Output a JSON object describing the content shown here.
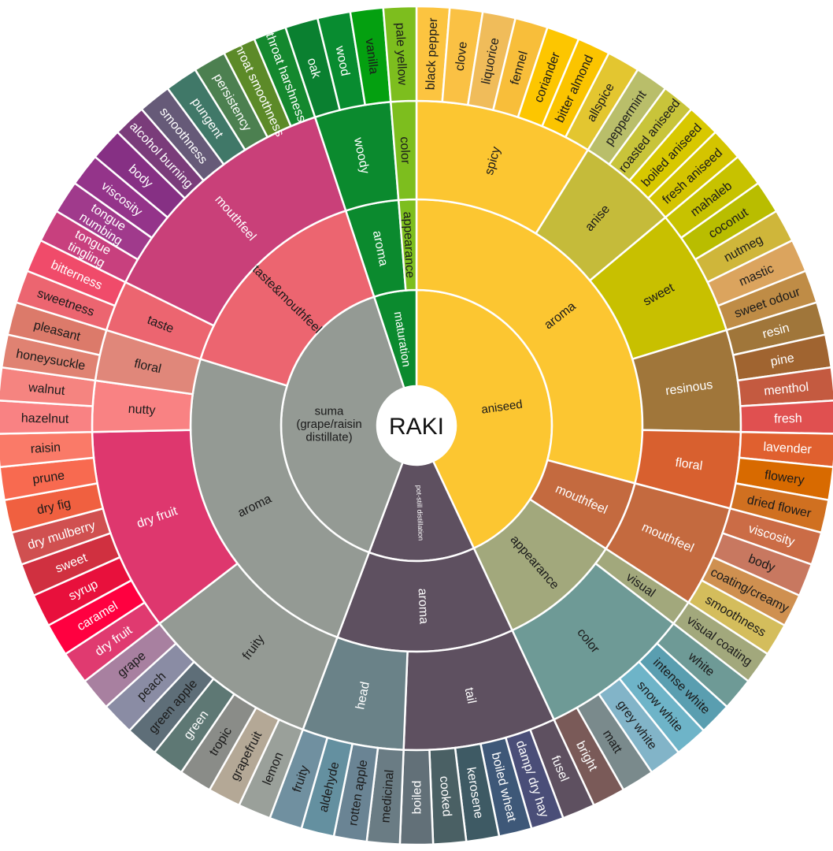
{
  "wheel": {
    "center_label": "RAKI",
    "text_colors": {
      "dark": "#1a1a1a",
      "light": "#ffffff"
    },
    "children": [
      {
        "label": "aniseed",
        "color": "#FCC631",
        "text": "dark",
        "children": [
          {
            "label": "aroma",
            "color": "#FCC631",
            "text": "dark",
            "children": [
              {
                "label": "spicy",
                "color": "#FCC631",
                "text": "dark",
                "children": [
                  {
                    "label": "black pepper",
                    "color": "#FCC440",
                    "text": "dark"
                  },
                  {
                    "label": "clove",
                    "color": "#FAC144",
                    "text": "dark"
                  },
                  {
                    "label": "liquorice",
                    "color": "#F0BC5A",
                    "text": "dark"
                  },
                  {
                    "label": "fennel",
                    "color": "#F8BE3A",
                    "text": "dark"
                  },
                  {
                    "label": "coriander",
                    "color": "#FDC600",
                    "text": "dark"
                  },
                  {
                    "label": "bitter almond",
                    "color": "#FBC400",
                    "text": "dark"
                  },
                  {
                    "label": "allspice",
                    "color": "#E3C630",
                    "text": "dark"
                  }
                ]
              },
              {
                "label": "anise",
                "color": "#C5BB3A",
                "text": "dark",
                "children": [
                  {
                    "label": "peppermint",
                    "color": "#B9BE6A",
                    "text": "dark"
                  },
                  {
                    "label": "roasted aniseed",
                    "color": "#C8C43A",
                    "text": "dark"
                  },
                  {
                    "label": "boiled aniseed",
                    "color": "#D8C800",
                    "text": "dark"
                  },
                  {
                    "label": "fresh aniseed",
                    "color": "#D4C400",
                    "text": "dark"
                  }
                ]
              },
              {
                "label": "sweet",
                "color": "#C8C000",
                "text": "dark",
                "children": [
                  {
                    "label": "mahaleb",
                    "color": "#C7C200",
                    "text": "dark"
                  },
                  {
                    "label": "coconut",
                    "color": "#B9BD00",
                    "text": "dark"
                  },
                  {
                    "label": "nutmeg",
                    "color": "#CFB63A",
                    "text": "dark"
                  },
                  {
                    "label": "mastic",
                    "color": "#DBA45E",
                    "text": "dark"
                  },
                  {
                    "label": "sweet odour",
                    "color": "#BF8C46",
                    "text": "dark"
                  }
                ]
              },
              {
                "label": "resinous",
                "color": "#A0763A",
                "text": "light",
                "children": [
                  {
                    "label": "resin",
                    "color": "#A0763A",
                    "text": "light"
                  },
                  {
                    "label": "pine",
                    "color": "#A06430",
                    "text": "light"
                  },
                  {
                    "label": "menthol",
                    "color": "#C45A40",
                    "text": "light"
                  },
                  {
                    "label": "fresh",
                    "color": "#E05050",
                    "text": "light"
                  }
                ]
              },
              {
                "label": "floral",
                "color": "#D8602F",
                "text": "light",
                "children": [
                  {
                    "label": "lavender",
                    "color": "#E0602F",
                    "text": "light"
                  },
                  {
                    "label": "flowery",
                    "color": "#D86A00",
                    "text": "dark"
                  },
                  {
                    "label": "dried flower",
                    "color": "#D07020",
                    "text": "dark"
                  }
                ]
              }
            ]
          },
          {
            "label": "mouthfeel",
            "color": "#C46A3F",
            "text": "light",
            "children": [
              {
                "label": "mouthfeel",
                "color": "#C46A3F",
                "text": "light",
                "children": [
                  {
                    "label": "viscosity",
                    "color": "#CB6C46",
                    "text": "light"
                  },
                  {
                    "label": "body",
                    "color": "#C87860",
                    "text": "dark"
                  },
                  {
                    "label": "coating/creamy",
                    "color": "#CF9050",
                    "text": "dark"
                  },
                  {
                    "label": "smoothness",
                    "color": "#D4BD5C",
                    "text": "dark"
                  }
                ]
              }
            ]
          },
          {
            "label": "appearance",
            "color": "#A2A87C",
            "text": "dark",
            "children": [
              {
                "label": "visual",
                "color": "#A2A87C",
                "text": "dark",
                "children": [
                  {
                    "label": "visual coating",
                    "color": "#A2A87C",
                    "text": "dark"
                  }
                ]
              },
              {
                "label": "color",
                "color": "#6E9A96",
                "text": "dark",
                "children": [
                  {
                    "label": "white",
                    "color": "#6E9A96",
                    "text": "dark"
                  },
                  {
                    "label": "intense white",
                    "color": "#5A9EB0",
                    "text": "dark"
                  },
                  {
                    "label": "snow white",
                    "color": "#6EB4C8",
                    "text": "dark"
                  },
                  {
                    "label": "grey white",
                    "color": "#82B4C8",
                    "text": "dark"
                  },
                  {
                    "label": "matt",
                    "color": "#7A8A8C",
                    "text": "dark"
                  },
                  {
                    "label": "bright",
                    "color": "#7A5A58",
                    "text": "light"
                  }
                ]
              }
            ]
          }
        ]
      },
      {
        "label": "pot-still distillation",
        "color": "#5E5060",
        "text": "light",
        "small": true,
        "children": [
          {
            "label": "aroma",
            "color": "#5E5060",
            "text": "light",
            "children": [
              {
                "label": "tail",
                "color": "#5E5060",
                "text": "light",
                "children": [
                  {
                    "label": "fusel",
                    "color": "#5E5060",
                    "text": "light"
                  },
                  {
                    "label": "damp/ dry hay",
                    "color": "#4A4E78",
                    "text": "light"
                  },
                  {
                    "label": "boiled wheat",
                    "color": "#3E5878",
                    "text": "light"
                  },
                  {
                    "label": "kerosene",
                    "color": "#3E5A64",
                    "text": "light"
                  },
                  {
                    "label": "cooked",
                    "color": "#4A6064",
                    "text": "light"
                  },
                  {
                    "label": "boiled",
                    "color": "#627078",
                    "text": "light"
                  }
                ]
              },
              {
                "label": "head",
                "color": "#6A8288",
                "text": "light",
                "children": [
                  {
                    "label": "medicinal",
                    "color": "#6A7C84",
                    "text": "dark"
                  },
                  {
                    "label": "rotten apple",
                    "color": "#6A8494",
                    "text": "dark"
                  },
                  {
                    "label": "aldehyde",
                    "color": "#6490A0",
                    "text": "dark"
                  },
                  {
                    "label": "fruity",
                    "color": "#7090A0",
                    "text": "dark"
                  }
                ]
              }
            ]
          }
        ]
      },
      {
        "label": "suma (grape/raisin distillate)",
        "lines": [
          "suma",
          "(grape/raisin",
          "distillate)"
        ],
        "horizontal": true,
        "color": "#949A94",
        "text": "dark",
        "children": [
          {
            "label": "aroma",
            "color": "#949A94",
            "text": "dark",
            "children": [
              {
                "label": "fruity",
                "color": "#949A94",
                "text": "dark",
                "children": [
                  {
                    "label": "lemon",
                    "color": "#9AA09A",
                    "text": "dark"
                  },
                  {
                    "label": "grapefruit",
                    "color": "#B4A896",
                    "text": "dark"
                  },
                  {
                    "label": "tropic",
                    "color": "#8A8C88",
                    "text": "dark"
                  },
                  {
                    "label": "green",
                    "color": "#5E7874",
                    "text": "light"
                  },
                  {
                    "label": "green apple",
                    "color": "#5E6E78",
                    "text": "dark"
                  },
                  {
                    "label": "peach",
                    "color": "#8A8CA4",
                    "text": "dark"
                  },
                  {
                    "label": "grape",
                    "color": "#A880A0",
                    "text": "dark"
                  }
                ]
              },
              {
                "label": "dry fruit",
                "color": "#DE376E",
                "text": "light",
                "children": [
                  {
                    "label": "dry fruit",
                    "color": "#E03A70",
                    "text": "light"
                  },
                  {
                    "label": "caramel",
                    "color": "#FF0040",
                    "text": "light"
                  },
                  {
                    "label": "syrup",
                    "color": "#E8103C",
                    "text": "light"
                  },
                  {
                    "label": "sweet",
                    "color": "#D03040",
                    "text": "light"
                  },
                  {
                    "label": "dry mulberry",
                    "color": "#D05050",
                    "text": "light"
                  },
                  {
                    "label": "dry fig",
                    "color": "#F06040",
                    "text": "dark"
                  },
                  {
                    "label": "prune",
                    "color": "#F86A50",
                    "text": "dark"
                  },
                  {
                    "label": "raisin",
                    "color": "#FA7A68",
                    "text": "dark"
                  }
                ]
              },
              {
                "label": "nutty",
                "color": "#F98283",
                "text": "dark",
                "children": [
                  {
                    "label": "hazelnut",
                    "color": "#F98283",
                    "text": "dark"
                  },
                  {
                    "label": "walnut",
                    "color": "#F58480",
                    "text": "dark"
                  }
                ]
              },
              {
                "label": "floral",
                "color": "#E0877A",
                "text": "dark",
                "children": [
                  {
                    "label": "honeysuckle",
                    "color": "#E08272",
                    "text": "dark"
                  },
                  {
                    "label": "pleasant",
                    "color": "#DC7A6A",
                    "text": "dark"
                  }
                ]
              }
            ]
          },
          {
            "label": "taste&mouthfeel",
            "color": "#EC6570",
            "text": "dark",
            "children": [
              {
                "label": "taste",
                "color": "#EC6570",
                "text": "dark",
                "children": [
                  {
                    "label": "sweetness",
                    "color": "#EC6570",
                    "text": "dark"
                  },
                  {
                    "label": "bitterness",
                    "color": "#F04B6A",
                    "text": "light"
                  }
                ]
              },
              {
                "label": "mouthfeel",
                "color": "#C94079",
                "text": "light",
                "children": [
                  {
                    "label": "tongue tingling",
                    "lines": [
                      "tongue",
                      "tingling"
                    ],
                    "color": "#C8407E",
                    "text": "light"
                  },
                  {
                    "label": "tongue numbing",
                    "lines": [
                      "tongue",
                      "numbing"
                    ],
                    "color": "#A03A8C",
                    "text": "light"
                  },
                  {
                    "label": "viscosity",
                    "color": "#94348A",
                    "text": "light"
                  },
                  {
                    "label": "body",
                    "color": "#863084",
                    "text": "light"
                  },
                  {
                    "label": "alcohol burning",
                    "color": "#7A3C7A",
                    "text": "light"
                  },
                  {
                    "label": "smoothness",
                    "color": "#665A78",
                    "text": "light"
                  },
                  {
                    "label": "pungent",
                    "color": "#407868",
                    "text": "light"
                  },
                  {
                    "label": "persistency",
                    "color": "#4C8050",
                    "text": "light"
                  },
                  {
                    "label": "throat smoothness",
                    "color": "#5C8A28",
                    "text": "light"
                  },
                  {
                    "label": "throat harshness",
                    "color": "#14882E",
                    "text": "light"
                  }
                ]
              }
            ]
          }
        ]
      },
      {
        "label": "maturation",
        "color": "#0B8A2E",
        "text": "light",
        "children": [
          {
            "label": "aroma",
            "color": "#0B8A2E",
            "text": "light",
            "children": [
              {
                "label": "woody",
                "color": "#0B8A2E",
                "text": "light",
                "children": [
                  {
                    "label": "oak",
                    "color": "#0A8030",
                    "text": "light"
                  },
                  {
                    "label": "wood",
                    "color": "#088C30",
                    "text": "light"
                  },
                  {
                    "label": "vanilla",
                    "color": "#04A010",
                    "text": "dark"
                  }
                ]
              }
            ]
          },
          {
            "label": "appearance",
            "color": "#7DBE1E",
            "text": "dark",
            "children": [
              {
                "label": "color",
                "color": "#7DBE1E",
                "text": "dark",
                "children": [
                  {
                    "label": "pale yellow",
                    "color": "#7DBE1E",
                    "text": "dark"
                  }
                ]
              }
            ]
          }
        ]
      }
    ]
  }
}
